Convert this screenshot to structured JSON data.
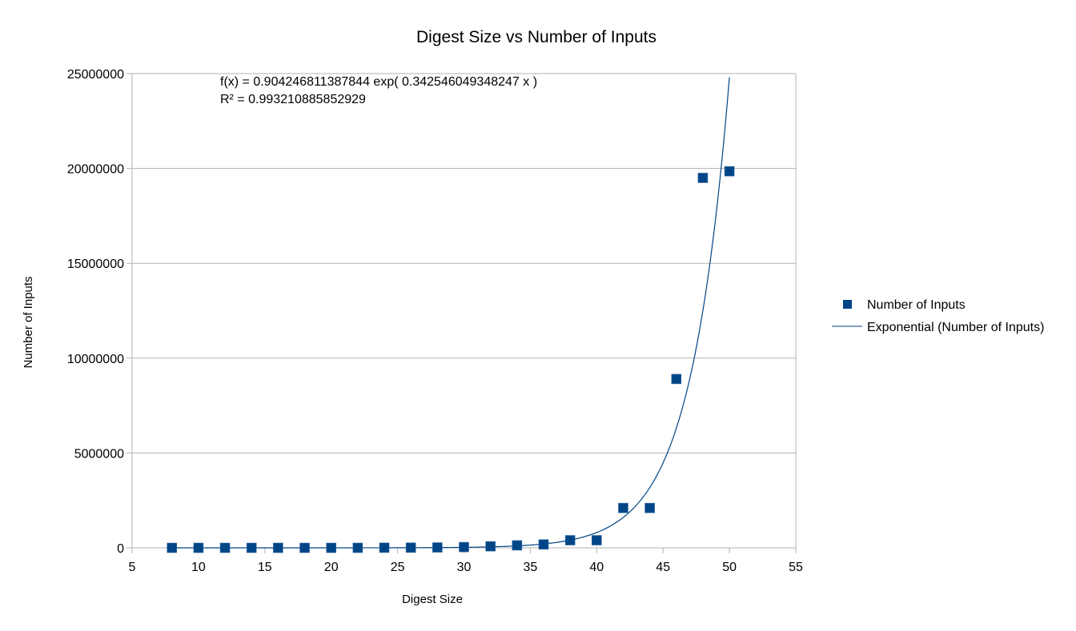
{
  "chart_data": {
    "type": "scatter",
    "title": "Digest Size vs Number of Inputs",
    "xlabel": "Digest Size",
    "ylabel": "Number of Inputs",
    "xlim": [
      5,
      55
    ],
    "ylim": [
      0,
      25000000
    ],
    "x_ticks": [
      "5",
      "10",
      "15",
      "20",
      "25",
      "30",
      "35",
      "40",
      "45",
      "50",
      "55"
    ],
    "y_ticks": [
      "0",
      "5000000",
      "10000000",
      "15000000",
      "20000000",
      "25000000"
    ],
    "grid": "horizontal",
    "legend_position": "right",
    "series": [
      {
        "name": "Number of Inputs",
        "marker": "square",
        "color": "#004586",
        "x": [
          8,
          10,
          12,
          14,
          16,
          18,
          20,
          22,
          24,
          26,
          28,
          30,
          32,
          34,
          36,
          38,
          40,
          42,
          44,
          46,
          48,
          50
        ],
        "y": [
          0,
          0,
          0,
          0,
          0,
          0,
          0,
          0,
          5000,
          10000,
          20000,
          40000,
          80000,
          130000,
          180000,
          400000,
          400000,
          2100000,
          2100000,
          8900000,
          19500000,
          19850000
        ]
      }
    ],
    "trendline": {
      "name": "Exponential (Number of Inputs)",
      "type": "exponential",
      "color": "#004586",
      "a": 0.904246811387844,
      "b": 0.342546049348247,
      "x_range": [
        8,
        50
      ],
      "equation_label": "f(x) = 0.904246811387844 exp( 0.342546049348247 x )",
      "r2_label": "R² = 0.993210885852929"
    }
  }
}
